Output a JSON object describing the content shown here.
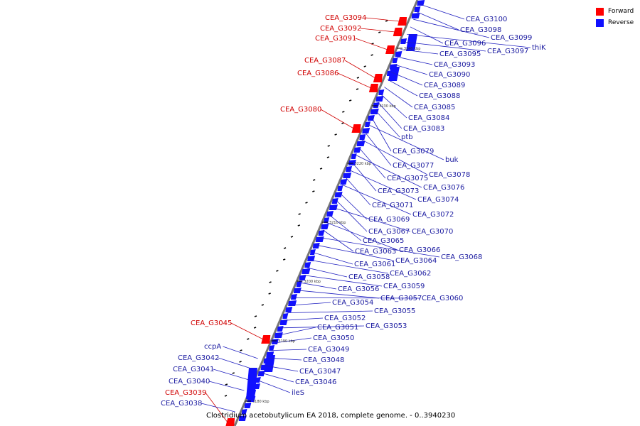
{
  "legend": [
    {
      "label": "Forward",
      "color": "#ff0000"
    },
    {
      "label": "Reverse",
      "color": "#1010ff"
    }
  ],
  "caption": "Clostridium acetobutylicum EA 2018, complete genome. - 0..3940230",
  "ticks": [
    "3180 kbp",
    "3190 kbp",
    "3200 kbp",
    "3210 kbp",
    "3220 kbp",
    "3230 kbp",
    "3240 kbp"
  ],
  "genes_forward": [
    "CEA_G3094",
    "CEA_G3092",
    "CEA_G3091",
    "CEA_G3087",
    "CEA_G3086",
    "CEA_G3080",
    "CEA_G3045",
    "CEA_G3039"
  ],
  "genes_reverse": [
    "CEA_G3100",
    "CEA_G3098",
    "CEA_G3099",
    "CEA_G3096",
    "thiK",
    "CEA_G3097",
    "CEA_G3095",
    "CEA_G3093",
    "CEA_G3090",
    "CEA_G3089",
    "CEA_G3088",
    "CEA_G3085",
    "CEA_G3084",
    "CEA_G3083",
    "ptb",
    "CEA_G3079",
    "buk",
    "CEA_G3077",
    "CEA_G3078",
    "CEA_G3075",
    "CEA_G3076",
    "CEA_G3073",
    "CEA_G3074",
    "CEA_G3071",
    "CEA_G3072",
    "CEA_G3069",
    "CEA_G3067",
    "CEA_G3070",
    "CEA_G3065",
    "CEA_G3066",
    "CEA_G3063",
    "CEA_G3068",
    "CEA_G3064",
    "CEA_G3061",
    "CEA_G3062",
    "CEA_G3058",
    "CEA_G3059",
    "CEA_G3056",
    "CEA_G3057",
    "CEA_G3060",
    "CEA_G3054",
    "CEA_G3055",
    "CEA_G3052",
    "CEA_G3053",
    "CEA_G3051",
    "CEA_G3050",
    "CEA_G3049",
    "CEA_G3048",
    "CEA_G3047",
    "CEA_G3046",
    "ileS",
    "ccpA",
    "CEA_G3042",
    "CEA_G3041",
    "CEA_G3040",
    "CEA_G3038"
  ]
}
